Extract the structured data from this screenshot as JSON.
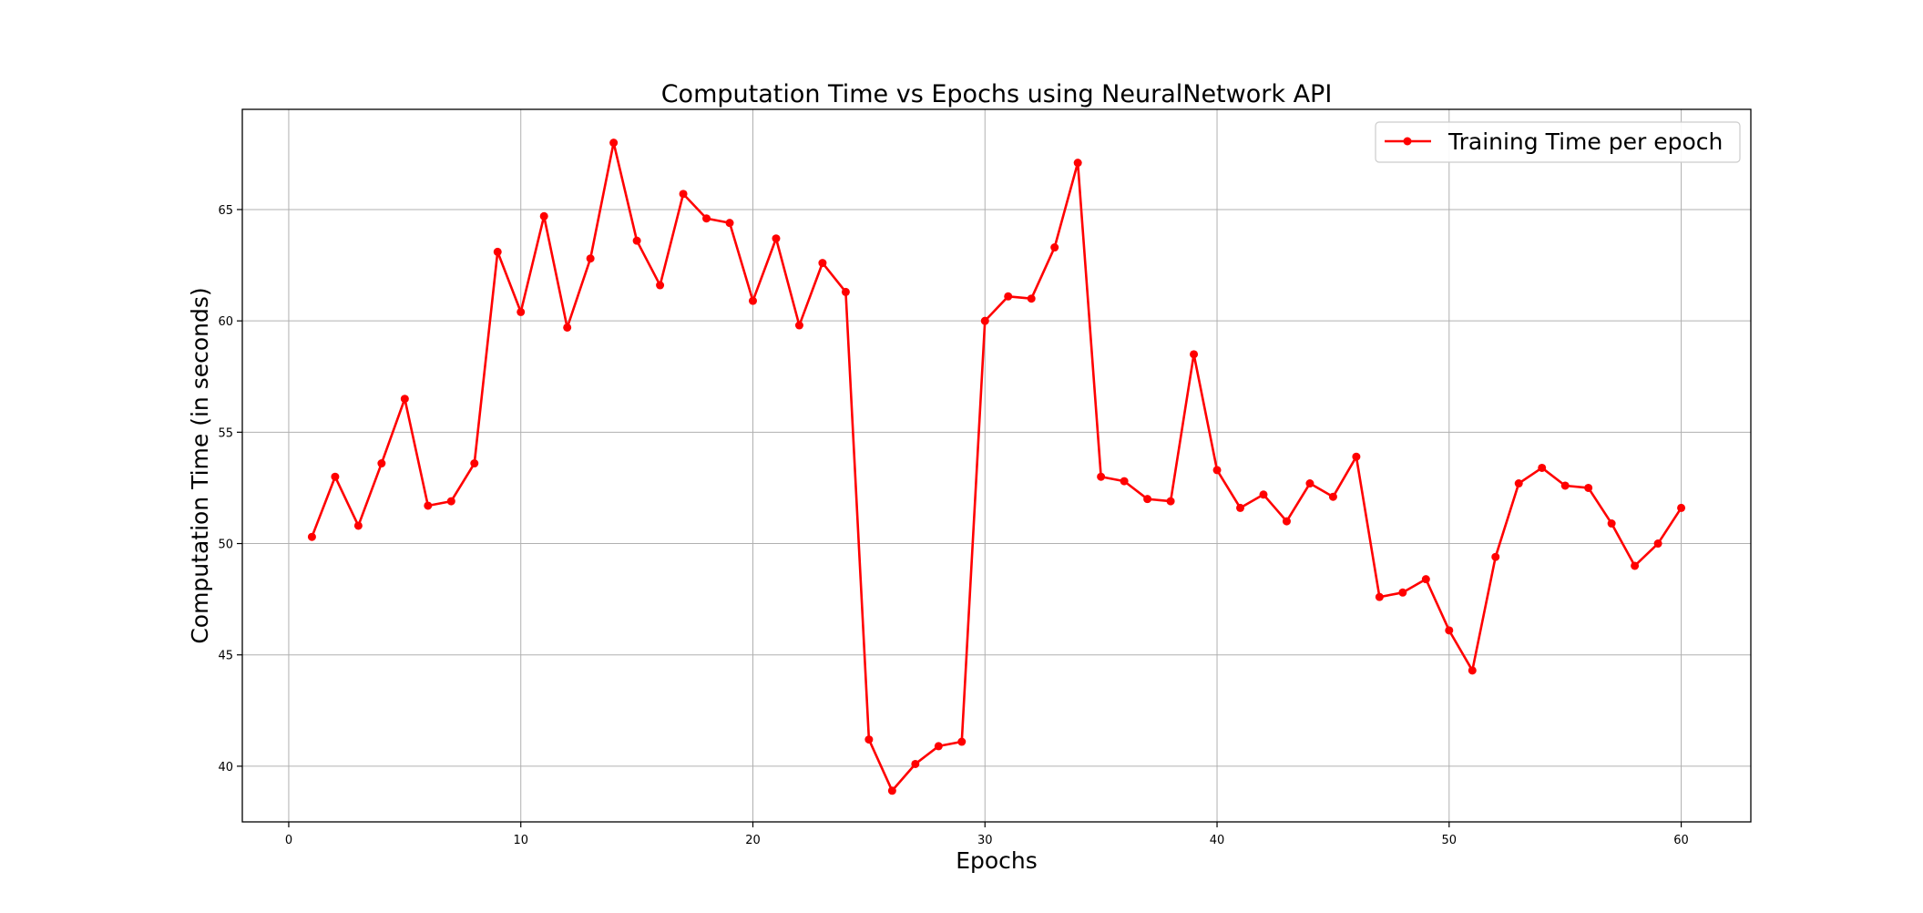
{
  "chart_data": {
    "type": "line",
    "title": "Computation Time vs Epochs using NeuralNetwork API",
    "xlabel": "Epochs",
    "ylabel": "Computation Time (in seconds)",
    "xlim": [
      -2,
      63
    ],
    "ylim": [
      37.5,
      69.5
    ],
    "xticks": [
      0,
      10,
      20,
      30,
      40,
      50,
      60
    ],
    "yticks": [
      40,
      45,
      50,
      55,
      60,
      65
    ],
    "grid": true,
    "legend_position": "top-right",
    "series": [
      {
        "name": "Training Time per epoch",
        "color": "#ff0000",
        "marker": "circle",
        "x": [
          1,
          2,
          3,
          4,
          5,
          6,
          7,
          8,
          9,
          10,
          11,
          12,
          13,
          14,
          15,
          16,
          17,
          18,
          19,
          20,
          21,
          22,
          23,
          24,
          25,
          26,
          27,
          28,
          29,
          30,
          31,
          32,
          33,
          34,
          35,
          36,
          37,
          38,
          39,
          40,
          41,
          42,
          43,
          44,
          45,
          46,
          47,
          48,
          49,
          50,
          51,
          52,
          53,
          54,
          55,
          56,
          57,
          58,
          59,
          60
        ],
        "values": [
          50.3,
          53.0,
          50.8,
          53.6,
          56.5,
          51.7,
          51.9,
          53.6,
          63.1,
          60.4,
          64.7,
          59.7,
          62.8,
          68.0,
          63.6,
          61.6,
          65.7,
          64.6,
          64.4,
          60.9,
          63.7,
          59.8,
          62.6,
          61.3,
          41.2,
          38.9,
          40.1,
          40.9,
          41.1,
          60.0,
          61.1,
          61.0,
          63.3,
          67.1,
          53.0,
          52.8,
          52.0,
          51.9,
          58.5,
          53.3,
          51.6,
          52.2,
          51.0,
          52.7,
          52.1,
          53.9,
          47.6,
          47.8,
          48.4,
          46.1,
          44.3,
          49.4,
          52.7,
          53.4,
          52.6,
          52.5,
          50.9,
          49.0,
          50.0,
          51.6
        ]
      }
    ]
  }
}
